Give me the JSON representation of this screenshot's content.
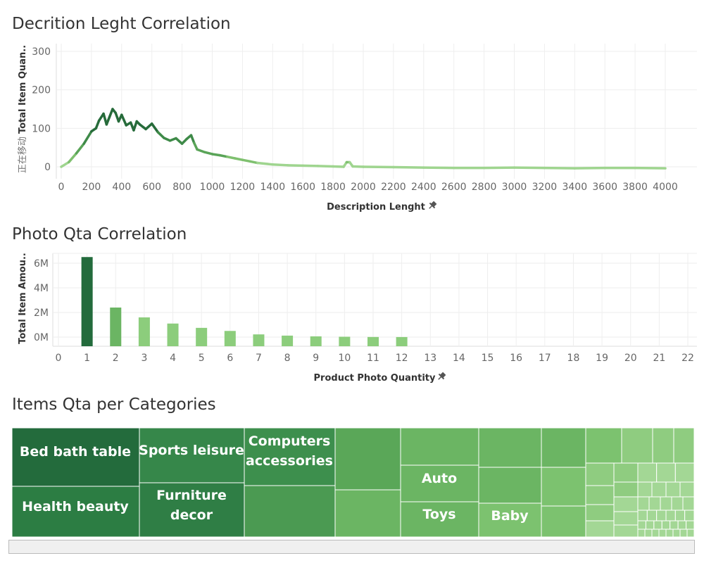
{
  "chart_data": [
    {
      "type": "line",
      "title": "Decrition Leght Correlation",
      "xlabel": "Description Lenght",
      "ylabel": "Total Item Quan..",
      "ylabel_prefix": "正在移动",
      "xlim": [
        0,
        4000
      ],
      "ylim": [
        -10,
        300
      ],
      "x_ticks": [
        "0",
        "200",
        "400",
        "600",
        "800",
        "1000",
        "1200",
        "1400",
        "1600",
        "1800",
        "2000",
        "2200",
        "2400",
        "2600",
        "2800",
        "3000",
        "3200",
        "3400",
        "3600",
        "3800",
        "4000"
      ],
      "y_ticks": [
        "300",
        "200",
        "100",
        "0"
      ],
      "points": [
        [
          0,
          0
        ],
        [
          50,
          12
        ],
        [
          100,
          35
        ],
        [
          150,
          60
        ],
        [
          200,
          92
        ],
        [
          230,
          100
        ],
        [
          250,
          120
        ],
        [
          280,
          138
        ],
        [
          300,
          110
        ],
        [
          320,
          130
        ],
        [
          340,
          150
        ],
        [
          360,
          140
        ],
        [
          380,
          118
        ],
        [
          400,
          135
        ],
        [
          430,
          108
        ],
        [
          460,
          115
        ],
        [
          480,
          95
        ],
        [
          500,
          118
        ],
        [
          520,
          110
        ],
        [
          560,
          98
        ],
        [
          600,
          112
        ],
        [
          640,
          90
        ],
        [
          680,
          75
        ],
        [
          720,
          68
        ],
        [
          760,
          74
        ],
        [
          800,
          60
        ],
        [
          830,
          72
        ],
        [
          860,
          82
        ],
        [
          880,
          62
        ],
        [
          900,
          45
        ],
        [
          950,
          38
        ],
        [
          1000,
          33
        ],
        [
          1050,
          30
        ],
        [
          1100,
          26
        ],
        [
          1150,
          22
        ],
        [
          1200,
          18
        ],
        [
          1250,
          14
        ],
        [
          1300,
          10
        ],
        [
          1400,
          6
        ],
        [
          1500,
          4
        ],
        [
          1600,
          3
        ],
        [
          1700,
          2
        ],
        [
          1800,
          1
        ],
        [
          1870,
          0
        ],
        [
          1890,
          12
        ],
        [
          1910,
          12
        ],
        [
          1930,
          1
        ],
        [
          2000,
          0
        ],
        [
          2200,
          -1
        ],
        [
          2400,
          -2
        ],
        [
          2600,
          -3
        ],
        [
          2800,
          -3
        ],
        [
          3000,
          -2
        ],
        [
          3200,
          -3
        ],
        [
          3400,
          -4
        ],
        [
          3600,
          -3
        ],
        [
          3800,
          -3
        ],
        [
          4000,
          -4
        ]
      ]
    },
    {
      "type": "bar",
      "title": "Photo Qta Correlation",
      "xlabel": "Product Photo Quantity",
      "ylabel": "Total Item Amou..",
      "categories": [
        "0",
        "1",
        "2",
        "3",
        "4",
        "5",
        "6",
        "7",
        "8",
        "9",
        "10",
        "11",
        "12",
        "13",
        "14",
        "15",
        "16",
        "17",
        "18",
        "19",
        "20",
        "21",
        "22"
      ],
      "values": [
        0,
        6.5,
        2.4,
        1.6,
        1.1,
        0.75,
        0.5,
        0.22,
        0.12,
        0.06,
        0.03,
        0.01,
        0.005,
        0,
        0,
        0,
        0,
        0,
        0,
        0,
        0,
        0,
        0
      ],
      "units": "M",
      "y_ticks": [
        "6M",
        "4M",
        "2M",
        "0M"
      ],
      "ylim": [
        -0.6,
        6.5
      ]
    },
    {
      "type": "treemap",
      "title": "Items Qta per Categories",
      "labels": [
        "Bed bath table",
        "Health beauty",
        "Sports leisure",
        "Furniture decor",
        "Computers accessories",
        "Auto",
        "Toys",
        "Baby"
      ],
      "colors": [
        "#236b3c",
        "#2c7d43",
        "#36874a",
        "#2f7e45",
        "#3d8f4d",
        "#4b9a52",
        "#5aa758",
        "#6bb563",
        "#7cc26f",
        "#8fcc80",
        "#a3d795"
      ]
    }
  ]
}
